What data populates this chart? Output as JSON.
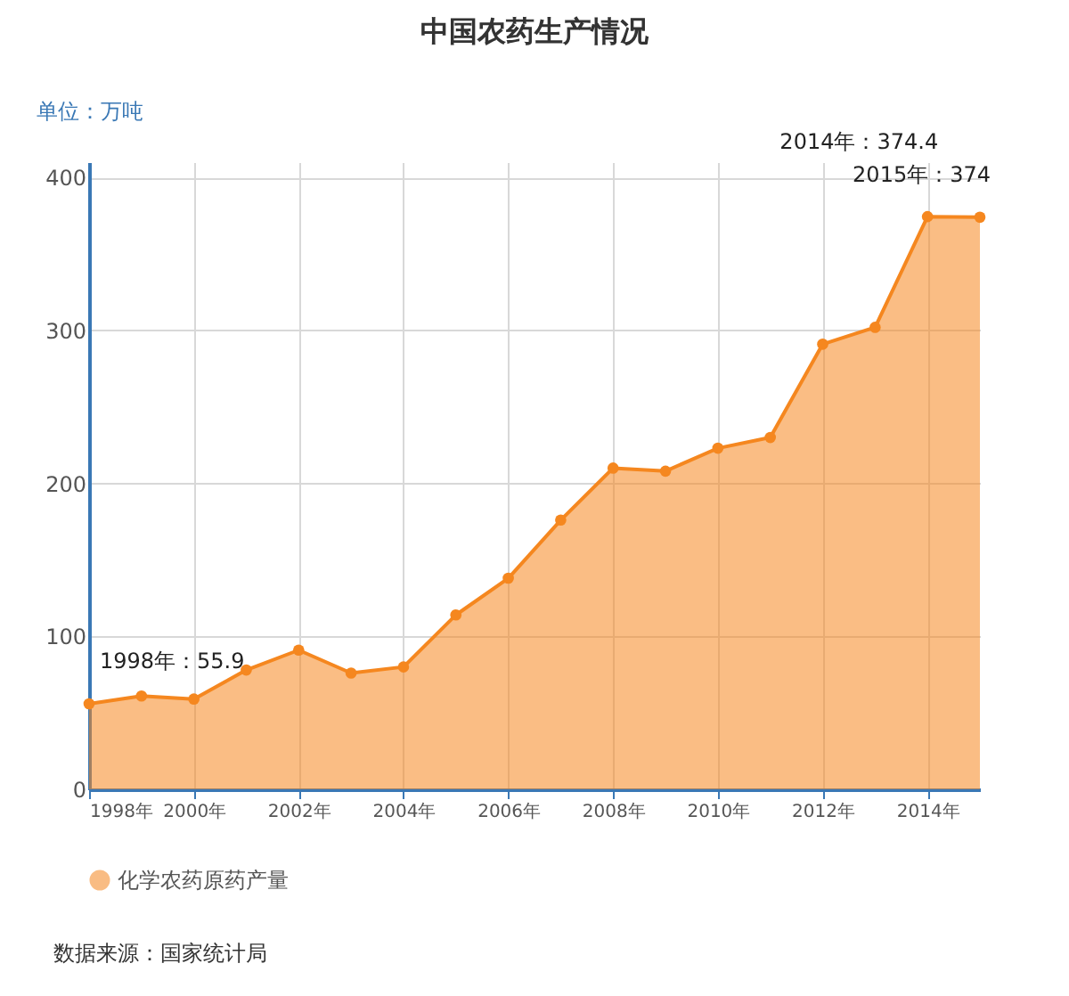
{
  "chart_data": {
    "type": "area",
    "title": "中国农药生产情况",
    "ylabel": "单位：万吨",
    "x": [
      1998,
      1999,
      2000,
      2001,
      2002,
      2003,
      2004,
      2005,
      2006,
      2007,
      2008,
      2009,
      2010,
      2011,
      2012,
      2013,
      2014,
      2015
    ],
    "series": [
      {
        "name": "化学农药原药产量",
        "color": "#f5871f",
        "values": [
          55.9,
          61,
          59,
          78,
          91,
          76,
          80,
          114,
          138,
          176,
          210,
          208,
          223,
          230,
          291,
          302,
          374.4,
          374
        ]
      }
    ],
    "xlim": [
      1998,
      2015
    ],
    "xticks": [
      {
        "value": 1998,
        "label": "1998年"
      },
      {
        "value": 2000,
        "label": "2000年"
      },
      {
        "value": 2002,
        "label": "2002年"
      },
      {
        "value": 2004,
        "label": "2004年"
      },
      {
        "value": 2006,
        "label": "2006年"
      },
      {
        "value": 2008,
        "label": "2008年"
      },
      {
        "value": 2010,
        "label": "2010年"
      },
      {
        "value": 2012,
        "label": "2012年"
      },
      {
        "value": 2014,
        "label": "2014年"
      }
    ],
    "ylim": [
      0,
      410
    ],
    "yticks": [
      0,
      100,
      200,
      300,
      400
    ],
    "grid": true,
    "legend": "bottom",
    "marker": "circle",
    "annotations": [
      {
        "text": "1998年：55.9",
        "x": 1998,
        "y": 55.9
      },
      {
        "text": "2014年：374.4",
        "x": 2014,
        "y": 374.4
      },
      {
        "text": "2015年：374",
        "x": 2015,
        "y": 374
      },
      "数据来源：国家统计局"
    ]
  }
}
